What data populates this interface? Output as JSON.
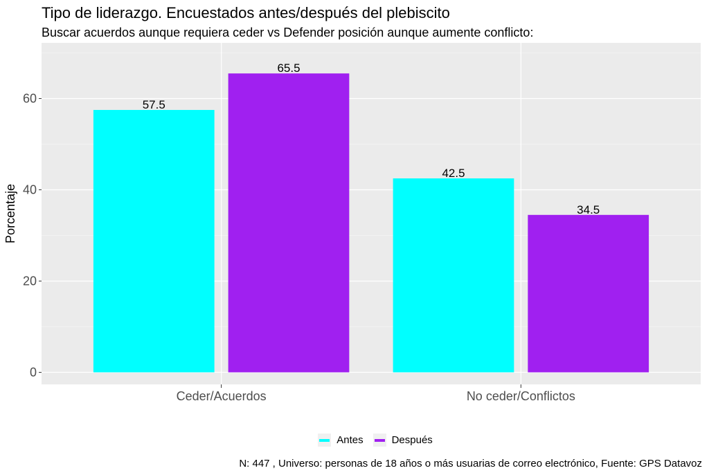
{
  "chart_data": {
    "type": "bar",
    "title": "Tipo de liderazgo. Encuestados antes/después del plebiscito",
    "subtitle": "Buscar acuerdos aunque requiera ceder vs Defender posición aunque aumente conflicto:",
    "xlabel": "",
    "ylabel": "Porcentaje",
    "categories": [
      "Ceder/Acuerdos",
      "No ceder/Conflictos"
    ],
    "series": [
      {
        "name": "Antes",
        "color": "#00FFFF",
        "values": [
          57.5,
          42.5
        ]
      },
      {
        "name": "Después",
        "color": "#A020F0",
        "values": [
          65.5,
          34.5
        ]
      }
    ],
    "ylim": [
      0,
      72
    ],
    "yticks": [
      0,
      20,
      40,
      60
    ],
    "grid": true,
    "legend_position": "bottom",
    "caption": "N: 447 , Universo: personas de 18 años o más usuarias de correo electrónico, Fuente: GPS Datavoz"
  }
}
